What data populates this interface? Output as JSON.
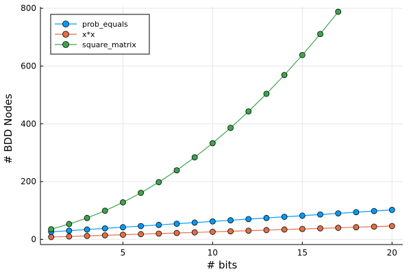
{
  "chart_data": {
    "type": "line",
    "title": "",
    "xlabel": "# bits",
    "ylabel": "# BDD Nodes",
    "xlim": [
      0.4,
      20.6
    ],
    "ylim": [
      -18,
      805
    ],
    "xticks": [
      5,
      10,
      15,
      20
    ],
    "yticks": [
      0,
      200,
      400,
      600,
      800
    ],
    "grid": true,
    "legend_position": "top-left",
    "series": [
      {
        "name": "prob_equals",
        "color": "#009af9",
        "x": [
          1,
          2,
          3,
          4,
          5,
          6,
          7,
          8,
          9,
          10,
          11,
          12,
          13,
          14,
          15,
          16,
          17,
          18,
          19,
          20
        ],
        "values": [
          26,
          30,
          34,
          38,
          42,
          46,
          50,
          54,
          58,
          62,
          66,
          70,
          74,
          78,
          82,
          86,
          90,
          94,
          98,
          102
        ]
      },
      {
        "name": "x*x",
        "color": "#e26f46",
        "x": [
          1,
          2,
          3,
          4,
          5,
          6,
          7,
          8,
          9,
          10,
          11,
          12,
          13,
          14,
          15,
          16,
          17,
          18,
          19,
          20
        ],
        "values": [
          8,
          10,
          12,
          14,
          16,
          18,
          20,
          22,
          24,
          26,
          28,
          30,
          32,
          34,
          36,
          38,
          40,
          42,
          44,
          46
        ]
      },
      {
        "name": "square_matrix",
        "color": "#3da44d",
        "x": [
          1,
          2,
          3,
          4,
          5,
          6,
          7,
          8,
          9,
          10,
          11,
          12,
          13,
          14,
          15,
          16,
          17
        ],
        "values": [
          35,
          53,
          74,
          99,
          128,
          161,
          198,
          239,
          284,
          333,
          386,
          443,
          504,
          569,
          638,
          711,
          788
        ]
      }
    ]
  }
}
